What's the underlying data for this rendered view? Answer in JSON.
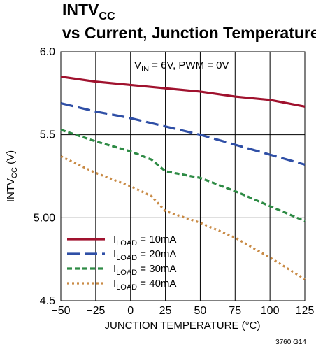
{
  "chart_data": {
    "type": "line",
    "title": {
      "main": "INTV",
      "sub": "CC",
      "line2": "vs Current, Junction Temperature"
    },
    "annotation": {
      "a": "V",
      "a_sub": "IN",
      "b": " = 6V, PWM = 0V"
    },
    "xlabel": "JUNCTION TEMPERATURE (°C)",
    "ylabel": {
      "main": "INTV",
      "sub": "CC",
      "unit": " (V)"
    },
    "xlim": [
      -50,
      125
    ],
    "ylim": [
      4.5,
      6.0
    ],
    "x_ticks": [
      "−50",
      "−25",
      "0",
      "25",
      "50",
      "75",
      "100",
      "125"
    ],
    "x_tick_values": [
      -50,
      -25,
      0,
      25,
      50,
      75,
      100,
      125
    ],
    "y_ticks": [
      "4.5",
      "5.00",
      "5.5",
      "6.0"
    ],
    "y_tick_values": [
      4.5,
      5.0,
      5.5,
      6.0
    ],
    "grid": true,
    "figure_code": "3760 G14",
    "legend_position": "bottom-left",
    "series": [
      {
        "label_main": "I",
        "label_sub": "LOAD",
        "label_rest": " = 10mA",
        "color": "#a0122e",
        "dash": "",
        "x": [
          -50,
          -25,
          0,
          25,
          50,
          75,
          100,
          125
        ],
        "y": [
          5.85,
          5.82,
          5.8,
          5.78,
          5.76,
          5.73,
          5.71,
          5.67
        ]
      },
      {
        "label_main": "I",
        "label_sub": "LOAD",
        "label_rest": " = 20mA",
        "color": "#2f4fa6",
        "dash": "18,7",
        "x": [
          -50,
          -25,
          0,
          25,
          50,
          75,
          100,
          125
        ],
        "y": [
          5.69,
          5.64,
          5.6,
          5.55,
          5.5,
          5.44,
          5.38,
          5.32
        ]
      },
      {
        "label_main": "I",
        "label_sub": "LOAD",
        "label_rest": " = 30mA",
        "color": "#2e8b45",
        "dash": "7,4",
        "x": [
          -50,
          -25,
          0,
          15,
          25,
          50,
          75,
          100,
          125
        ],
        "y": [
          5.53,
          5.46,
          5.4,
          5.35,
          5.28,
          5.24,
          5.16,
          5.07,
          4.98
        ]
      },
      {
        "label_main": "I",
        "label_sub": "LOAD",
        "label_rest": " = 40mA",
        "color": "#c98b46",
        "dash": "3,4",
        "x": [
          -50,
          -25,
          0,
          15,
          25,
          50,
          75,
          100,
          125
        ],
        "y": [
          5.37,
          5.27,
          5.19,
          5.13,
          5.04,
          4.97,
          4.88,
          4.76,
          4.63
        ]
      }
    ]
  }
}
